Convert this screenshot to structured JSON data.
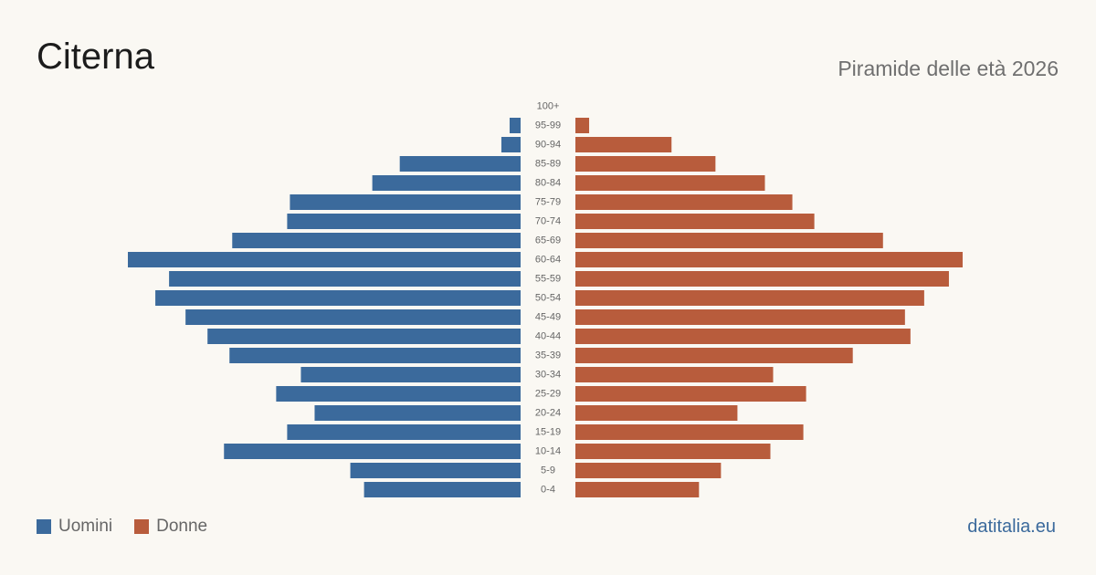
{
  "header": {
    "title": "Citerna",
    "subtitle": "Piramide delle età 2026"
  },
  "legend": {
    "items": [
      {
        "label": "Uomini",
        "color": "#3b6a9c"
      },
      {
        "label": "Donne",
        "color": "#b85c3c"
      }
    ]
  },
  "footer": {
    "source": "datitalia.eu"
  },
  "chart_data": {
    "type": "bar",
    "orientation": "horizontal-population-pyramid",
    "categories": [
      "100+",
      "95-99",
      "90-94",
      "85-89",
      "80-84",
      "75-79",
      "70-74",
      "65-69",
      "60-64",
      "55-59",
      "50-54",
      "45-49",
      "40-44",
      "35-39",
      "30-34",
      "25-29",
      "20-24",
      "15-19",
      "10-14",
      "5-9",
      "0-4"
    ],
    "series": [
      {
        "name": "Uomini",
        "color": "#3b6a9c",
        "values": [
          0,
          4,
          7,
          44,
          54,
          84,
          85,
          105,
          143,
          128,
          133,
          122,
          114,
          106,
          80,
          89,
          75,
          85,
          108,
          62,
          57
        ]
      },
      {
        "name": "Donne",
        "color": "#b85c3c",
        "values": [
          0,
          5,
          35,
          51,
          69,
          79,
          87,
          112,
          141,
          136,
          127,
          120,
          122,
          101,
          72,
          84,
          59,
          83,
          71,
          53,
          45
        ]
      }
    ],
    "xlim": [
      0,
      143
    ],
    "grid": false,
    "legend_position": "bottom-left"
  }
}
